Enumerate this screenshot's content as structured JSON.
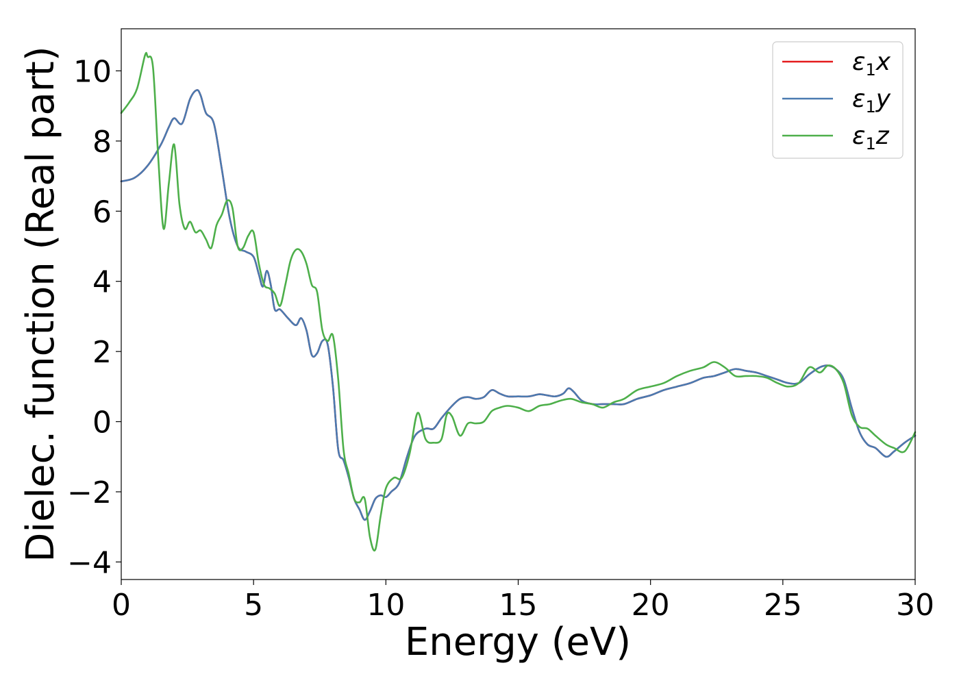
{
  "chart_data": {
    "type": "line",
    "title": "",
    "xlabel": "Energy (eV)",
    "ylabel": "Dielec. function (Real part)",
    "xlim": [
      0,
      30
    ],
    "ylim": [
      -4.5,
      11.2
    ],
    "xticks": [
      0,
      5,
      10,
      15,
      20,
      25,
      30
    ],
    "xtick_labels": [
      "0",
      "5",
      "10",
      "15",
      "20",
      "25",
      "30"
    ],
    "yticks": [
      -4,
      -2,
      0,
      2,
      4,
      6,
      8,
      10
    ],
    "ytick_labels": [
      "−4",
      "−2",
      "0",
      "2",
      "4",
      "6",
      "8",
      "10"
    ],
    "grid": false,
    "legend_position": "top-right",
    "series": [
      {
        "name": "ε₁x",
        "legend_main": "ε",
        "legend_sub": "1",
        "legend_tail": "x",
        "color": "#e41a1c",
        "x": [
          0,
          0.5,
          1.0,
          1.5,
          1.8,
          2.0,
          2.3,
          2.6,
          2.85,
          3.0,
          3.2,
          3.5,
          3.8,
          4.1,
          4.4,
          4.7,
          5.0,
          5.2,
          5.35,
          5.5,
          5.65,
          5.8,
          6.0,
          6.3,
          6.6,
          6.8,
          7.0,
          7.2,
          7.4,
          7.6,
          7.8,
          8.0,
          8.2,
          8.4,
          8.6,
          8.8,
          9.0,
          9.2,
          9.4,
          9.6,
          9.8,
          10.0,
          10.2,
          10.5,
          10.8,
          11.1,
          11.5,
          11.8,
          12.1,
          12.5,
          12.8,
          13.1,
          13.4,
          13.7,
          14.0,
          14.3,
          14.6,
          15.0,
          15.4,
          15.8,
          16.1,
          16.4,
          16.7,
          16.9,
          17.1,
          17.4,
          17.8,
          18.2,
          18.6,
          19.0,
          19.5,
          20.0,
          20.5,
          21.0,
          21.5,
          22.0,
          22.4,
          22.8,
          23.2,
          23.6,
          24.0,
          24.4,
          24.8,
          25.2,
          25.6,
          26.0,
          26.4,
          26.7,
          27.0,
          27.3,
          27.6,
          27.9,
          28.2,
          28.5,
          28.9,
          29.2,
          29.6,
          30.0
        ],
        "values": [
          6.85,
          6.95,
          7.3,
          7.9,
          8.4,
          8.65,
          8.5,
          9.2,
          9.45,
          9.3,
          8.8,
          8.5,
          7.2,
          5.8,
          5.0,
          4.85,
          4.7,
          4.2,
          3.85,
          4.3,
          3.9,
          3.2,
          3.2,
          2.95,
          2.75,
          2.95,
          2.6,
          1.9,
          1.95,
          2.3,
          2.2,
          1.0,
          -0.8,
          -1.1,
          -1.6,
          -2.2,
          -2.5,
          -2.8,
          -2.55,
          -2.2,
          -2.1,
          -2.15,
          -2.0,
          -1.75,
          -1.0,
          -0.4,
          -0.2,
          -0.2,
          0.1,
          0.45,
          0.65,
          0.7,
          0.65,
          0.7,
          0.9,
          0.8,
          0.72,
          0.72,
          0.72,
          0.78,
          0.75,
          0.72,
          0.8,
          0.95,
          0.85,
          0.6,
          0.5,
          0.5,
          0.5,
          0.5,
          0.65,
          0.75,
          0.9,
          1.0,
          1.1,
          1.25,
          1.3,
          1.4,
          1.5,
          1.45,
          1.4,
          1.3,
          1.2,
          1.1,
          1.1,
          1.35,
          1.55,
          1.6,
          1.5,
          1.2,
          0.4,
          -0.3,
          -0.65,
          -0.75,
          -1.0,
          -0.85,
          -0.6,
          -0.4
        ]
      },
      {
        "name": "ε₁y",
        "legend_main": "ε",
        "legend_sub": "1",
        "legend_tail": "y",
        "color": "#4a7ab0",
        "x": [
          0,
          0.5,
          1.0,
          1.5,
          1.8,
          2.0,
          2.3,
          2.6,
          2.85,
          3.0,
          3.2,
          3.5,
          3.8,
          4.1,
          4.4,
          4.7,
          5.0,
          5.2,
          5.35,
          5.5,
          5.65,
          5.8,
          6.0,
          6.3,
          6.6,
          6.8,
          7.0,
          7.2,
          7.4,
          7.6,
          7.8,
          8.0,
          8.2,
          8.4,
          8.6,
          8.8,
          9.0,
          9.2,
          9.4,
          9.6,
          9.8,
          10.0,
          10.2,
          10.5,
          10.8,
          11.1,
          11.5,
          11.8,
          12.1,
          12.5,
          12.8,
          13.1,
          13.4,
          13.7,
          14.0,
          14.3,
          14.6,
          15.0,
          15.4,
          15.8,
          16.1,
          16.4,
          16.7,
          16.9,
          17.1,
          17.4,
          17.8,
          18.2,
          18.6,
          19.0,
          19.5,
          20.0,
          20.5,
          21.0,
          21.5,
          22.0,
          22.4,
          22.8,
          23.2,
          23.6,
          24.0,
          24.4,
          24.8,
          25.2,
          25.6,
          26.0,
          26.4,
          26.7,
          27.0,
          27.3,
          27.6,
          27.9,
          28.2,
          28.5,
          28.9,
          29.2,
          29.6,
          30.0
        ],
        "values": [
          6.85,
          6.95,
          7.3,
          7.9,
          8.4,
          8.65,
          8.5,
          9.2,
          9.45,
          9.3,
          8.8,
          8.5,
          7.2,
          5.8,
          5.0,
          4.85,
          4.7,
          4.2,
          3.85,
          4.3,
          3.9,
          3.2,
          3.2,
          2.95,
          2.75,
          2.95,
          2.6,
          1.9,
          1.95,
          2.3,
          2.2,
          1.0,
          -0.8,
          -1.1,
          -1.6,
          -2.2,
          -2.5,
          -2.8,
          -2.55,
          -2.2,
          -2.1,
          -2.15,
          -2.0,
          -1.75,
          -1.0,
          -0.4,
          -0.2,
          -0.2,
          0.1,
          0.45,
          0.65,
          0.7,
          0.65,
          0.7,
          0.9,
          0.8,
          0.72,
          0.72,
          0.72,
          0.78,
          0.75,
          0.72,
          0.8,
          0.95,
          0.85,
          0.6,
          0.5,
          0.5,
          0.5,
          0.5,
          0.65,
          0.75,
          0.9,
          1.0,
          1.1,
          1.25,
          1.3,
          1.4,
          1.5,
          1.45,
          1.4,
          1.3,
          1.2,
          1.1,
          1.1,
          1.35,
          1.55,
          1.6,
          1.5,
          1.2,
          0.4,
          -0.3,
          -0.65,
          -0.75,
          -1.0,
          -0.85,
          -0.6,
          -0.4
        ]
      },
      {
        "name": "ε₁z",
        "legend_main": "ε",
        "legend_sub": "1",
        "legend_tail": "z",
        "color": "#4daf4a",
        "x": [
          0,
          0.3,
          0.6,
          0.9,
          1.0,
          1.2,
          1.4,
          1.6,
          1.8,
          2.0,
          2.2,
          2.4,
          2.6,
          2.8,
          3.0,
          3.2,
          3.4,
          3.6,
          3.8,
          4.0,
          4.2,
          4.4,
          4.6,
          4.8,
          5.0,
          5.2,
          5.4,
          5.6,
          5.8,
          6.0,
          6.2,
          6.4,
          6.6,
          6.8,
          7.0,
          7.2,
          7.4,
          7.6,
          7.8,
          8.0,
          8.2,
          8.4,
          8.6,
          8.8,
          9.0,
          9.2,
          9.4,
          9.6,
          9.8,
          10.0,
          10.3,
          10.6,
          10.9,
          11.2,
          11.5,
          11.8,
          12.1,
          12.3,
          12.5,
          12.8,
          13.1,
          13.4,
          13.7,
          14.0,
          14.3,
          14.6,
          15.0,
          15.4,
          15.8,
          16.2,
          16.6,
          17.0,
          17.4,
          17.8,
          18.2,
          18.6,
          19.0,
          19.5,
          20.0,
          20.5,
          21.0,
          21.5,
          22.0,
          22.4,
          22.8,
          23.2,
          23.6,
          24.0,
          24.4,
          24.8,
          25.2,
          25.6,
          26.0,
          26.4,
          26.7,
          27.0,
          27.3,
          27.6,
          27.9,
          28.2,
          28.5,
          28.9,
          29.2,
          29.6,
          30.0
        ],
        "values": [
          8.8,
          9.1,
          9.5,
          10.45,
          10.4,
          10.1,
          7.5,
          5.5,
          6.8,
          7.9,
          6.2,
          5.5,
          5.7,
          5.4,
          5.45,
          5.2,
          4.95,
          5.6,
          5.9,
          6.3,
          6.1,
          5.0,
          4.95,
          5.3,
          5.4,
          4.5,
          3.9,
          3.8,
          3.65,
          3.3,
          3.9,
          4.6,
          4.9,
          4.85,
          4.5,
          3.9,
          3.7,
          2.6,
          2.3,
          2.45,
          1.2,
          -0.8,
          -1.5,
          -2.2,
          -2.3,
          -2.2,
          -3.3,
          -3.65,
          -2.7,
          -1.9,
          -1.6,
          -1.6,
          -0.9,
          0.25,
          -0.5,
          -0.6,
          -0.5,
          0.2,
          0.15,
          -0.4,
          -0.05,
          -0.05,
          0.0,
          0.3,
          0.4,
          0.45,
          0.4,
          0.3,
          0.45,
          0.5,
          0.6,
          0.65,
          0.55,
          0.5,
          0.4,
          0.55,
          0.65,
          0.9,
          1.0,
          1.1,
          1.3,
          1.45,
          1.55,
          1.7,
          1.55,
          1.3,
          1.3,
          1.3,
          1.25,
          1.1,
          1.0,
          1.1,
          1.55,
          1.4,
          1.6,
          1.5,
          1.1,
          0.2,
          -0.15,
          -0.2,
          -0.4,
          -0.65,
          -0.75,
          -0.85,
          -0.3
        ]
      }
    ]
  }
}
